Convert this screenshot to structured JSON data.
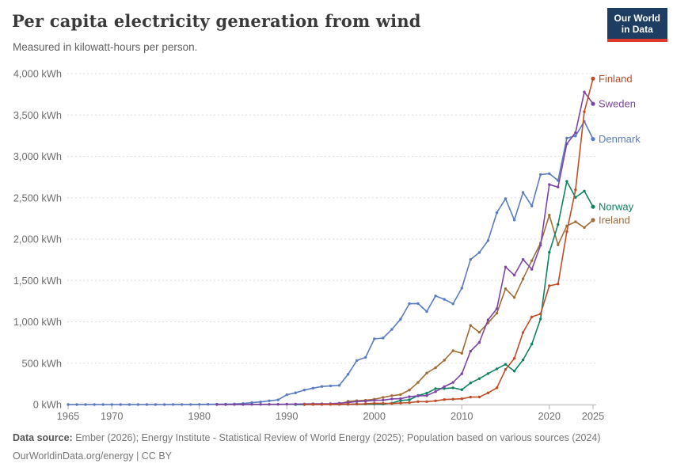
{
  "header": {
    "title": "Per capita electricity generation from wind",
    "subtitle": "Measured in kilowatt-hours per person."
  },
  "logo": {
    "line1": "Our World",
    "line2": "in Data"
  },
  "footer": {
    "source_label": "Data source:",
    "source_text": " Ember (2026); Energy Institute - Statistical Review of World Energy (2025); Population based on various sources (2024)",
    "license": "OurWorldinData.org/energy | CC BY"
  },
  "chart_data": {
    "type": "line",
    "title": "Per capita electricity generation from wind",
    "unit": "kWh",
    "xlabel": "",
    "ylabel": "",
    "xlim": [
      1965,
      2025
    ],
    "ylim": [
      0,
      4000
    ],
    "grid": "horizontal-dashed",
    "legend_position": "right-end-labels",
    "colors": {
      "grid": "#dedede",
      "axis": "#b3b3b3",
      "tick_text": "#6e6e6e",
      "logo_bg": "#1d3d63",
      "logo_bar": "#dc3a2e"
    },
    "xticks": [
      1965,
      1970,
      1980,
      1990,
      2000,
      2010,
      2020,
      2025
    ],
    "yticks": [
      {
        "value": 0,
        "label": "0 kWh"
      },
      {
        "value": 500,
        "label": "500 kWh"
      },
      {
        "value": 1000,
        "label": "1,000 kWh"
      },
      {
        "value": 1500,
        "label": "1,500 kWh"
      },
      {
        "value": 2000,
        "label": "2,000 kWh"
      },
      {
        "value": 2500,
        "label": "2,500 kWh"
      },
      {
        "value": 3000,
        "label": "3,000 kWh"
      },
      {
        "value": 3500,
        "label": "3,500 kWh"
      },
      {
        "value": 4000,
        "label": "4,000 kWh"
      }
    ],
    "draw_order": [
      "Denmark",
      "Ireland",
      "Norway",
      "Sweden",
      "Finland"
    ],
    "series": [
      {
        "name": "Finland",
        "color": "#c14d28",
        "start_year": 1992,
        "values": [
          0,
          1,
          1,
          2,
          2,
          4,
          5,
          10,
          15,
          14,
          12,
          18,
          23,
          35,
          35,
          45,
          60,
          65,
          70,
          90,
          91,
          141,
          202,
          424,
          558,
          872,
          1059,
          1096,
          1435,
          1457,
          2090,
          2596,
          3540,
          3940
        ]
      },
      {
        "name": "Sweden",
        "color": "#7d45a5",
        "start_year": 1982,
        "values": [
          0,
          0,
          1,
          1,
          2,
          2,
          3,
          3,
          5,
          6,
          7,
          9,
          9,
          11,
          16,
          24,
          36,
          41,
          51,
          54,
          68,
          71,
          95,
          104,
          108,
          156,
          216,
          267,
          372,
          645,
          751,
          1023,
          1158,
          1663,
          1564,
          1754,
          1635,
          1925,
          2659,
          2629,
          3152,
          3287,
          3778,
          3635
        ]
      },
      {
        "name": "Denmark",
        "color": "#5b7cc4",
        "start_year": 1965,
        "values": [
          0,
          0,
          0,
          0,
          0,
          0,
          0,
          0,
          0,
          0,
          0,
          0,
          1,
          1,
          1,
          2,
          3,
          4,
          5,
          7,
          12,
          23,
          32,
          45,
          56,
          119,
          142,
          175,
          198,
          218,
          226,
          232,
          366,
          532,
          570,
          794,
          804,
          908,
          1032,
          1219,
          1221,
          1124,
          1313,
          1272,
          1217,
          1408,
          1754,
          1837,
          1982,
          2320,
          2488,
          2231,
          2564,
          2400,
          2780,
          2791,
          2708,
          3220,
          3247,
          3422,
          3210
        ]
      },
      {
        "name": "Norway",
        "color": "#108264",
        "start_year": 1991,
        "values": [
          0,
          0,
          2,
          3,
          3,
          2,
          3,
          7,
          6,
          7,
          6,
          17,
          49,
          57,
          109,
          137,
          192,
          193,
          202,
          180,
          261,
          313,
          374,
          432,
          486,
          405,
          540,
          731,
          1034,
          1840,
          2176,
          2698,
          2503,
          2581,
          2390
        ]
      },
      {
        "name": "Ireland",
        "color": "#9f6e37",
        "start_year": 1992,
        "values": [
          2,
          4,
          5,
          4,
          5,
          38,
          46,
          52,
          64,
          86,
          107,
          121,
          175,
          267,
          381,
          445,
          536,
          651,
          620,
          956,
          874,
          987,
          1104,
          1400,
          1294,
          1520,
          1740,
          1950,
          2290,
          1930,
          2160,
          2210,
          2140,
          2230
        ]
      }
    ]
  }
}
